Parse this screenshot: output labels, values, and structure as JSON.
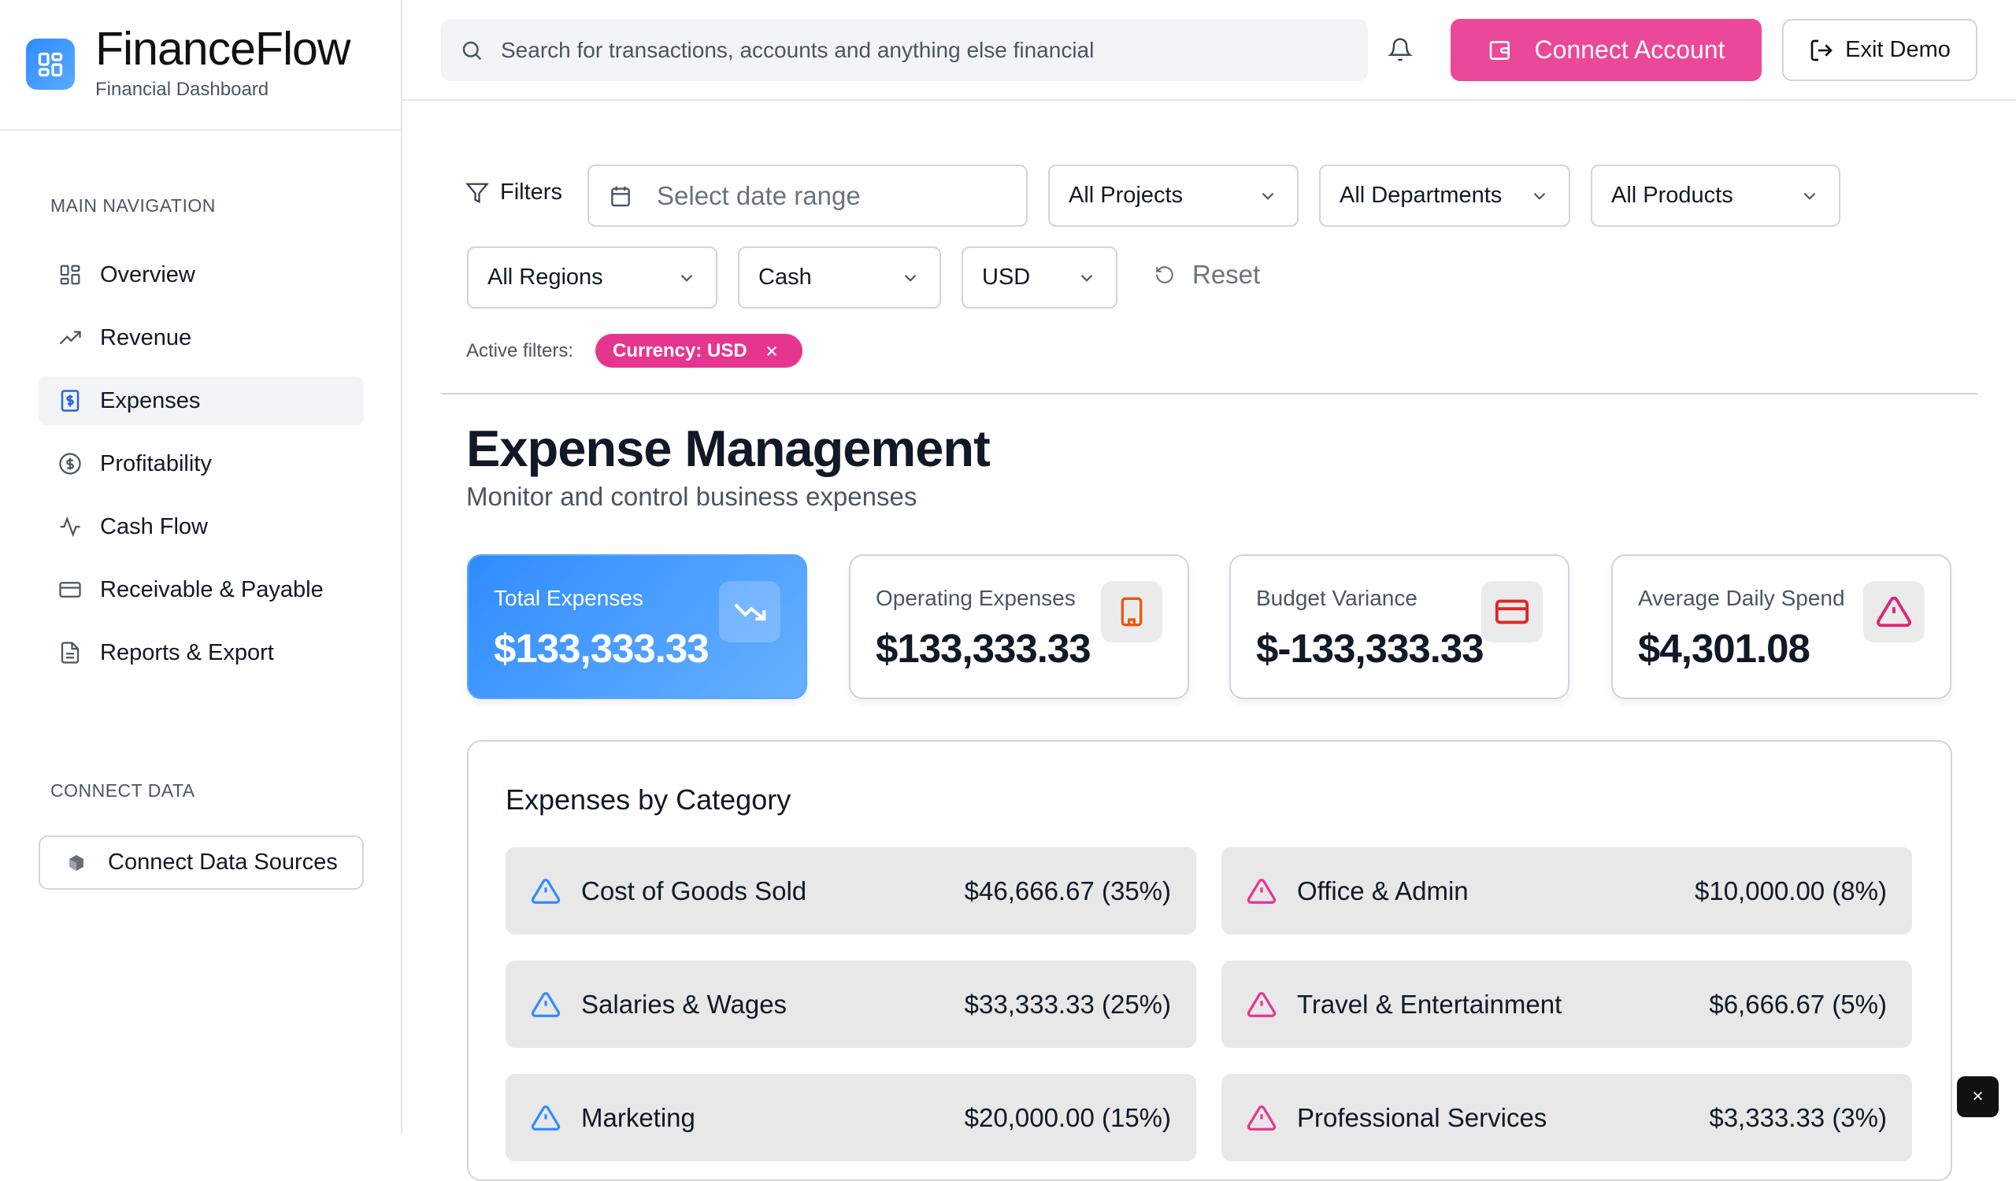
{
  "brand": {
    "name": "FinanceFlow",
    "subtitle": "Financial Dashboard",
    "accent": "#2f8cff"
  },
  "sidebar": {
    "main_label": "MAIN NAVIGATION",
    "items": [
      {
        "label": "Overview",
        "icon": "grid-icon"
      },
      {
        "label": "Revenue",
        "icon": "trending-up-icon"
      },
      {
        "label": "Expenses",
        "icon": "dollar-receipt-icon",
        "active": true
      },
      {
        "label": "Profitability",
        "icon": "dollar-circle-icon"
      },
      {
        "label": "Cash Flow",
        "icon": "activity-icon"
      },
      {
        "label": "Receivable & Payable",
        "icon": "credit-card-icon"
      },
      {
        "label": "Reports & Export",
        "icon": "file-icon"
      }
    ],
    "connect_label": "CONNECT DATA",
    "connect_button": "Connect Data Sources"
  },
  "header": {
    "search_placeholder": "Search for transactions, accounts and anything else financial",
    "connect_account": "Connect Account",
    "exit_demo": "Exit Demo",
    "connect_color": "#ec4899"
  },
  "filters": {
    "label": "Filters",
    "date_placeholder": "Select date range",
    "projects": "All Projects",
    "departments": "All Departments",
    "products": "All Products",
    "regions": "All Regions",
    "basis": "Cash",
    "currency": "USD",
    "reset": "Reset",
    "active_label": "Active filters:",
    "active_chip": "Currency: USD"
  },
  "page": {
    "title": "Expense Management",
    "subtitle": "Monitor and control business expenses"
  },
  "cards": [
    {
      "label": "Total Expenses",
      "value": "$133,333.33",
      "icon": "trending-down-icon"
    },
    {
      "label": "Operating Expenses",
      "value": "$133,333.33",
      "icon": "building-icon"
    },
    {
      "label": "Budget Variance",
      "value": "$-133,333.33",
      "icon": "credit-card-icon"
    },
    {
      "label": "Average Daily Spend",
      "value": "$4,301.08",
      "icon": "alert-triangle-icon"
    }
  ],
  "categories": {
    "title": "Expenses by Category",
    "items": [
      {
        "name": "Cost of Goods Sold",
        "value": "$46,666.67 (35%)",
        "color": "#2f8cff"
      },
      {
        "name": "Office & Admin",
        "value": "$10,000.00 (8%)",
        "color": "#e6358f"
      },
      {
        "name": "Salaries & Wages",
        "value": "$33,333.33 (25%)",
        "color": "#2f8cff"
      },
      {
        "name": "Travel & Entertainment",
        "value": "$6,666.67 (5%)",
        "color": "#e6358f"
      },
      {
        "name": "Marketing",
        "value": "$20,000.00 (15%)",
        "color": "#2f8cff"
      },
      {
        "name": "Professional Services",
        "value": "$3,333.33 (3%)",
        "color": "#e6358f"
      }
    ]
  },
  "close_fab": "×"
}
